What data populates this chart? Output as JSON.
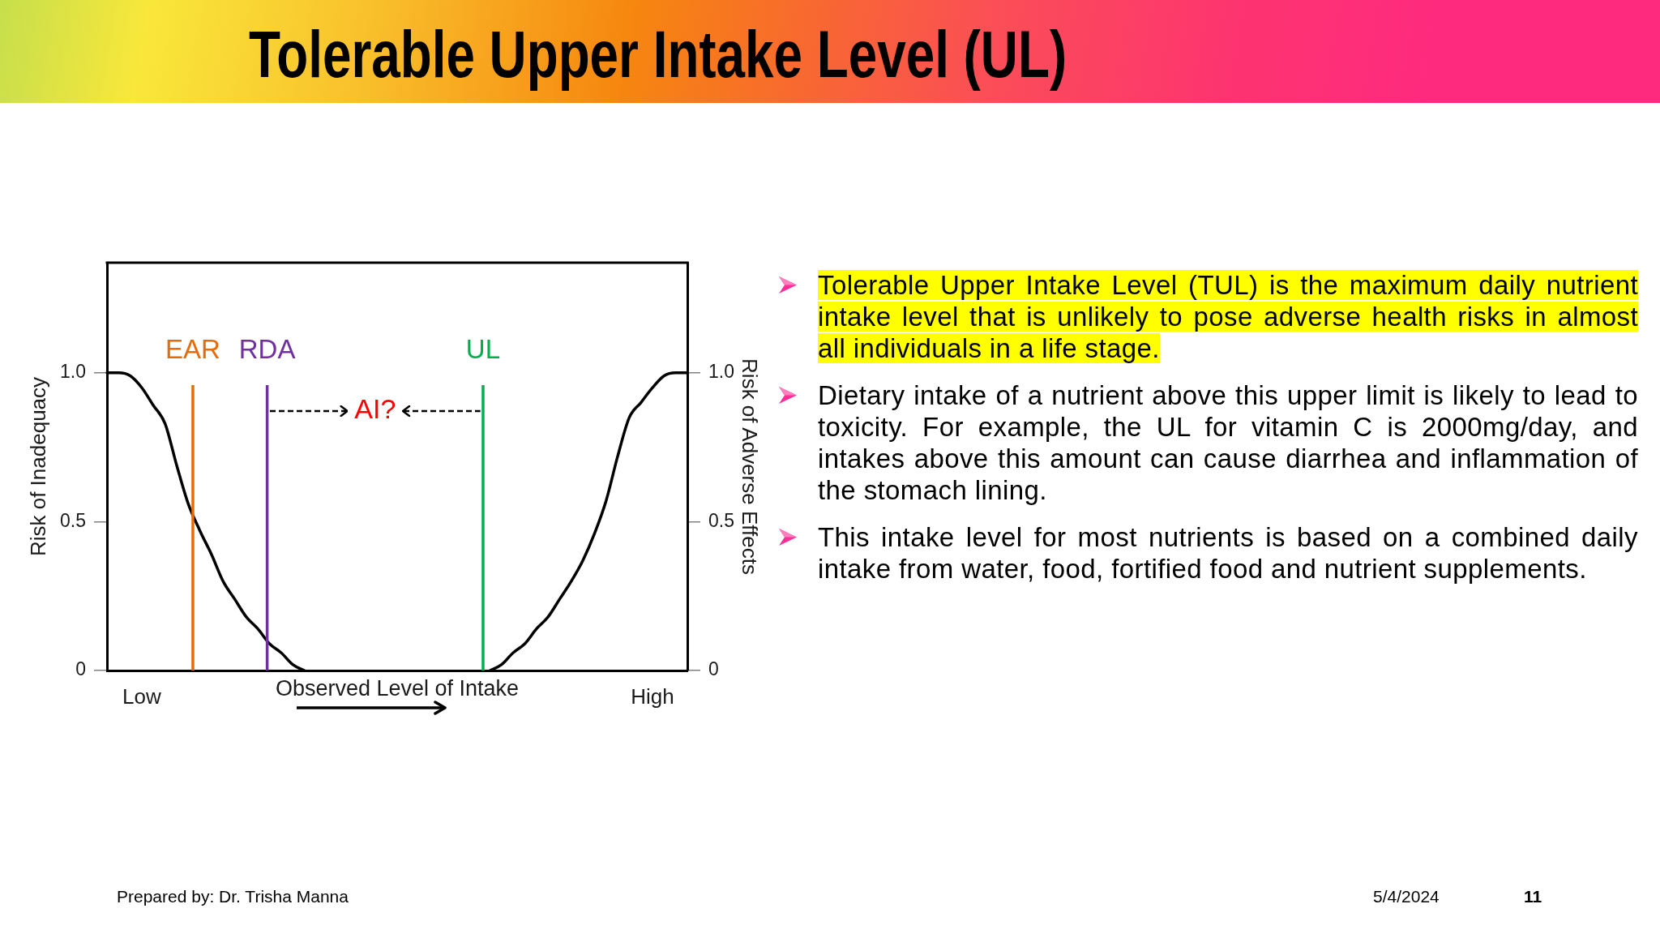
{
  "chart_data": {
    "type": "line",
    "title": "Tolerable Upper Intake Level (UL)",
    "xlabel": "Observed Level of Intake",
    "ylabel": "Risk of Inadequacy",
    "y2label": "Risk of Adverse Effects",
    "categories": [
      null,
      null,
      null,
      "Low",
      null,
      null,
      null,
      null,
      null,
      null,
      null,
      null,
      null,
      null,
      null,
      null,
      null,
      null,
      null,
      null,
      null,
      null,
      null,
      null,
      null,
      null,
      null,
      null,
      null,
      null,
      null,
      null,
      null,
      null,
      null,
      null,
      null,
      null,
      null,
      null,
      null,
      null,
      null,
      null,
      null,
      null,
      null,
      "High",
      null,
      null,
      null
    ],
    "series": [
      {
        "color": "#000000",
        "values": [
          1,
          1,
          0.99,
          0.95,
          0.89,
          0.83,
          0.69,
          0.56,
          0.47,
          0.39,
          0.3,
          0.24,
          0.18,
          0.14,
          0.09,
          0.06,
          0.02,
          0,
          null,
          null,
          null,
          null,
          null,
          null,
          null,
          null,
          null,
          null,
          null,
          null,
          null,
          null,
          null,
          null,
          null,
          null,
          null,
          null,
          null,
          null,
          null,
          null,
          null,
          null,
          null,
          null,
          null,
          null,
          null,
          null,
          null
        ]
      },
      {
        "color": "#000000",
        "axis": "y2",
        "values": [
          null,
          null,
          null,
          null,
          null,
          null,
          null,
          null,
          null,
          null,
          null,
          null,
          null,
          null,
          null,
          null,
          null,
          null,
          null,
          null,
          null,
          null,
          null,
          null,
          null,
          null,
          null,
          null,
          null,
          null,
          null,
          null,
          null,
          0,
          0.02,
          0.06,
          0.09,
          0.14,
          0.18,
          0.24,
          0.3,
          0.37,
          0.46,
          0.57,
          0.72,
          0.85,
          0.9,
          0.95,
          0.99,
          1,
          1
        ]
      }
    ],
    "ylim": [
      0,
      1.37
    ],
    "yticks": [
      0,
      0.5,
      {
        "value": 1,
        "label": "1.0"
      }
    ],
    "y2lim": [
      0,
      1.37
    ],
    "y2ticks": [
      0,
      0.5,
      {
        "value": 1,
        "label": "1.0"
      }
    ],
    "annotations": [
      "EAR",
      "RDA",
      "UL",
      "AI?",
      "Tolerable Upper Intake Level (TUL) is the maximum daily nutrient intake level that is unlikely to pose adverse health risks in almost all individuals in a life stage.",
      "Dietary intake of a nutrient above this upper limit is likely to lead to toxicity. For example, the UL for vitamin C is 2000mg/day, and intakes above this amount can cause diarrhea and inflammation of the stomach lining.",
      "This intake level for most nutrients is based on a combined daily intake from water, food, fortified food and nutrient supplements.",
      "Prepared by: Dr. Trisha Manna",
      "5/4/2024",
      "11"
    ],
    "grid": false,
    "legend": false,
    "marker": "none"
  }
}
